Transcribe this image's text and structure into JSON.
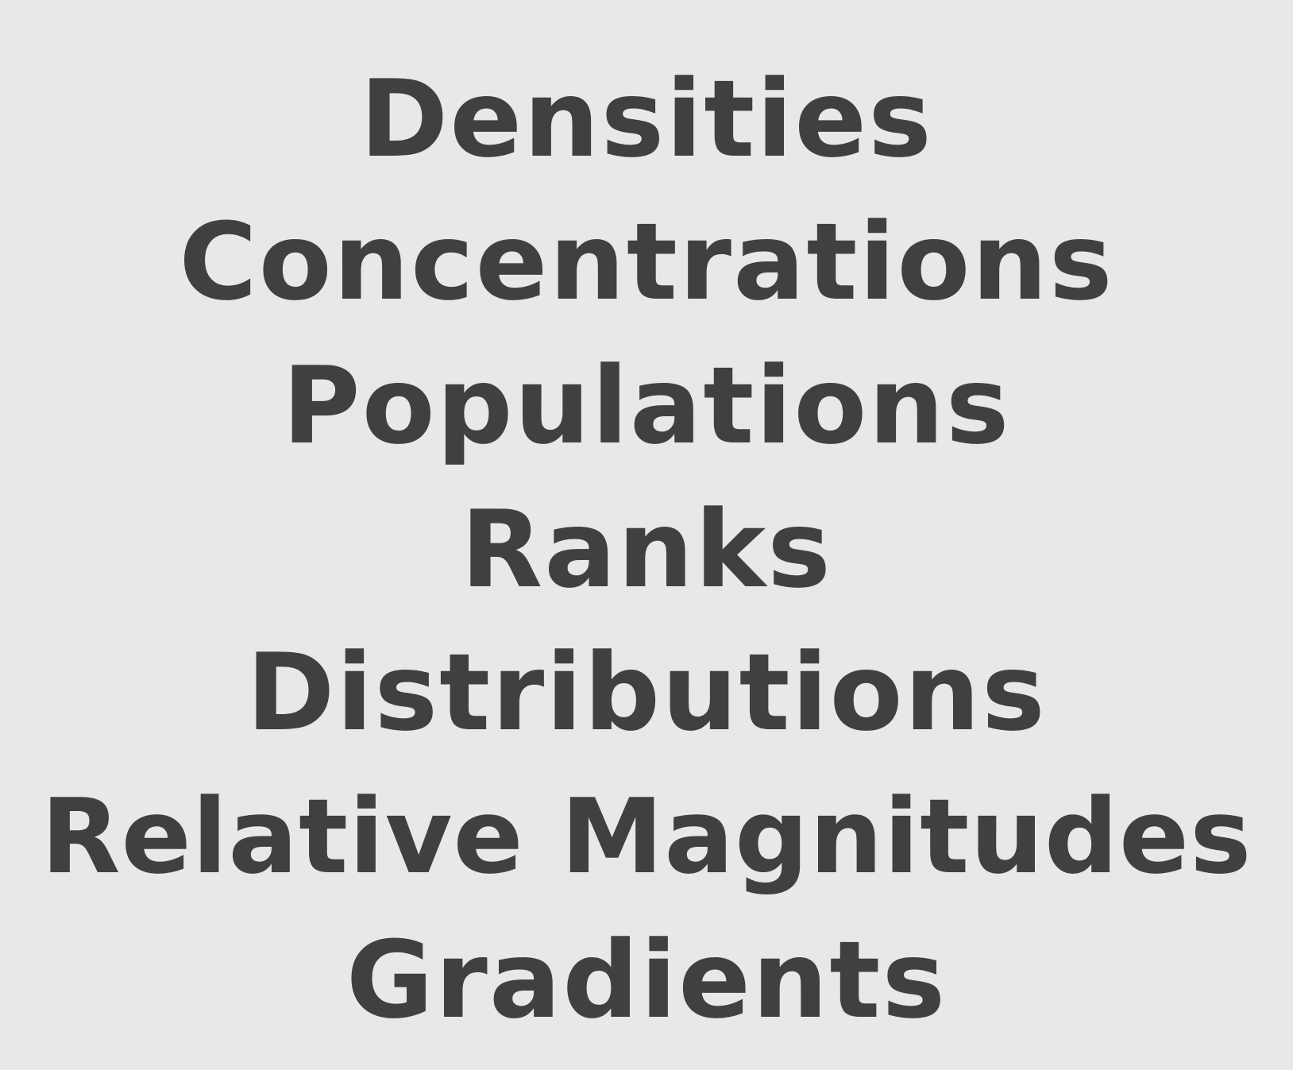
{
  "words": [
    "Densities",
    "Concentrations",
    "Populations",
    "Ranks",
    "Distributions",
    "Relative Magnitudes",
    "Gradients"
  ],
  "colors": {
    "background": "#e8e8e8",
    "text": "#404040"
  }
}
